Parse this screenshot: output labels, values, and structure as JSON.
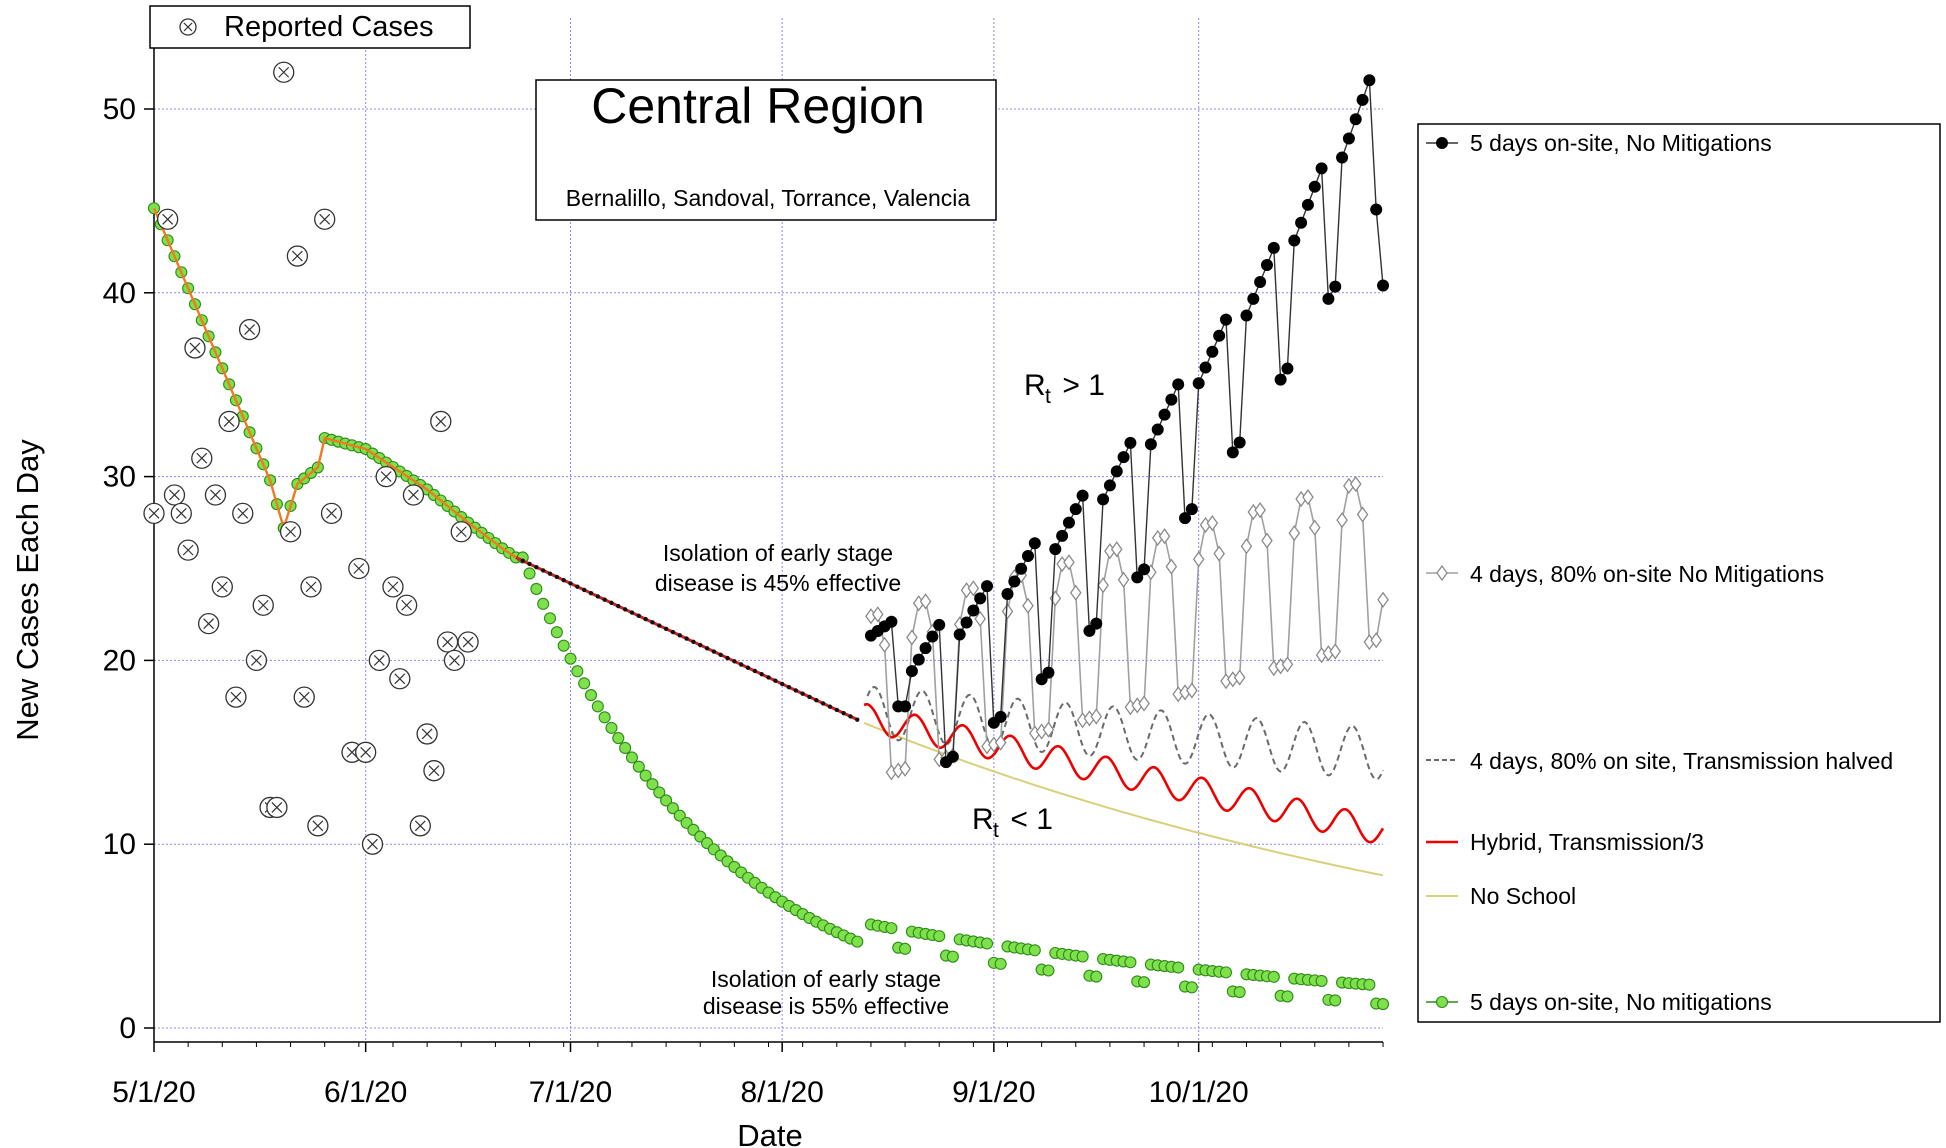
{
  "chart_data": {
    "type": "line",
    "title": "Central Region",
    "subtitle": "Bernalillo, Sandoval, Torrance,  Valencia",
    "xlabel": "Date",
    "ylabel": "New Cases Each Day",
    "x_ticks": [
      "5/1/20",
      "6/1/20",
      "7/1/20",
      "8/1/20",
      "9/1/20",
      "10/1/20"
    ],
    "y_ticks": [
      "0",
      "10",
      "20",
      "30",
      "40",
      "50"
    ],
    "x_range_days": [
      0,
      180
    ],
    "ylim": [
      0,
      54
    ],
    "grid": true,
    "legend_position": "right",
    "colors": {
      "black_series": "#000000",
      "gray_series": "#9a9a9a",
      "dashed_series": "#6a6a6a",
      "hybrid": "#ee0000",
      "no_school": "#d8d07a",
      "green": "#7ee04a",
      "green_edge": "#2f8a1a",
      "grid": "#8a8af0",
      "orange": "#f07a20"
    },
    "reported_cases": {
      "name": "Reported Cases",
      "points": [
        {
          "date": "5/1/20",
          "y": 28
        },
        {
          "date": "5/3/20",
          "y": 44
        },
        {
          "date": "5/4/20",
          "y": 29
        },
        {
          "date": "5/5/20",
          "y": 28
        },
        {
          "date": "5/6/20",
          "y": 26
        },
        {
          "date": "5/7/20",
          "y": 37
        },
        {
          "date": "5/8/20",
          "y": 31
        },
        {
          "date": "5/9/20",
          "y": 22
        },
        {
          "date": "5/10/20",
          "y": 29
        },
        {
          "date": "5/11/20",
          "y": 24
        },
        {
          "date": "5/12/20",
          "y": 33
        },
        {
          "date": "5/13/20",
          "y": 18
        },
        {
          "date": "5/14/20",
          "y": 28
        },
        {
          "date": "5/15/20",
          "y": 38
        },
        {
          "date": "5/16/20",
          "y": 20
        },
        {
          "date": "5/17/20",
          "y": 23
        },
        {
          "date": "5/18/20",
          "y": 12
        },
        {
          "date": "5/19/20",
          "y": 12
        },
        {
          "date": "5/20/20",
          "y": 52
        },
        {
          "date": "5/21/20",
          "y": 27
        },
        {
          "date": "5/22/20",
          "y": 42
        },
        {
          "date": "5/23/20",
          "y": 18
        },
        {
          "date": "5/24/20",
          "y": 24
        },
        {
          "date": "5/25/20",
          "y": 11
        },
        {
          "date": "5/26/20",
          "y": 44
        },
        {
          "date": "5/27/20",
          "y": 28
        },
        {
          "date": "5/30/20",
          "y": 15
        },
        {
          "date": "5/31/20",
          "y": 25
        },
        {
          "date": "6/1/20",
          "y": 15
        },
        {
          "date": "6/2/20",
          "y": 10
        },
        {
          "date": "6/3/20",
          "y": 20
        },
        {
          "date": "6/4/20",
          "y": 30
        },
        {
          "date": "6/5/20",
          "y": 24
        },
        {
          "date": "6/6/20",
          "y": 19
        },
        {
          "date": "6/7/20",
          "y": 23
        },
        {
          "date": "6/8/20",
          "y": 29
        },
        {
          "date": "6/9/20",
          "y": 11
        },
        {
          "date": "6/10/20",
          "y": 16
        },
        {
          "date": "6/11/20",
          "y": 14
        },
        {
          "date": "6/12/20",
          "y": 33
        },
        {
          "date": "6/13/20",
          "y": 21
        },
        {
          "date": "6/14/20",
          "y": 20
        },
        {
          "date": "6/15/20",
          "y": 27
        },
        {
          "date": "6/16/20",
          "y": 21
        }
      ]
    },
    "fit": {
      "anchors": [
        {
          "date": "5/1/20",
          "y": 44.6
        },
        {
          "date": "5/18/20",
          "y": 29.8
        },
        {
          "date": "5/20/20",
          "y": 27.2
        },
        {
          "date": "5/22/20",
          "y": 29.6
        },
        {
          "date": "5/25/20",
          "y": 30.5
        },
        {
          "date": "5/26/20",
          "y": 32.1
        },
        {
          "date": "6/1/20",
          "y": 31.5
        },
        {
          "date": "6/10/20",
          "y": 29.3
        },
        {
          "date": "6/16/20",
          "y": 27.5
        },
        {
          "date": "6/21/20",
          "y": 26.1
        },
        {
          "date": "6/23/20",
          "y": 25.6
        },
        {
          "date": "8/13/20",
          "y": 16.6
        }
      ]
    },
    "series": [
      {
        "name": "5 days on-site, No Mitigations",
        "style": "black-dots",
        "start": 16.6,
        "end": 50.6,
        "amp": 4.1,
        "last": 40.4
      },
      {
        "name": "4 days, 80% on-site No Mitigations",
        "style": "gray-diamonds",
        "start": 17.9,
        "end": 25.6,
        "amp": 4.4,
        "last": 23.3
      },
      {
        "name": "4 days, 80% on site, Transmission halved",
        "style": "dashed",
        "start": 17.2,
        "end": 14.9,
        "amp": 1.4
      },
      {
        "name": "Hybrid, Transmission/3",
        "style": "red",
        "start": 16.9,
        "end": 10.7,
        "amp": 0.75
      },
      {
        "name": "No School",
        "style": "yellow",
        "start": 16.6,
        "end": 8.3
      },
      {
        "name": "5 days on-site, No mitigations",
        "style": "green-dots",
        "decay_start": 25.6,
        "decay_end": 4.7,
        "tail_start": 5.7,
        "tail_end": 2.3,
        "tail_amp": 1.0
      }
    ],
    "annotations": {
      "iso45_line1": "Isolation of early stage",
      "iso45_line2": "disease is 45% effective",
      "iso55_line1": "Isolation of early stage",
      "iso55_line2": "disease is 55% effective",
      "rt_high_main": "R",
      "rt_high_sub": "t",
      "rt_high_rest": " > 1",
      "rt_low_main": "R",
      "rt_low_sub": "t",
      "rt_low_rest": " < 1"
    }
  }
}
